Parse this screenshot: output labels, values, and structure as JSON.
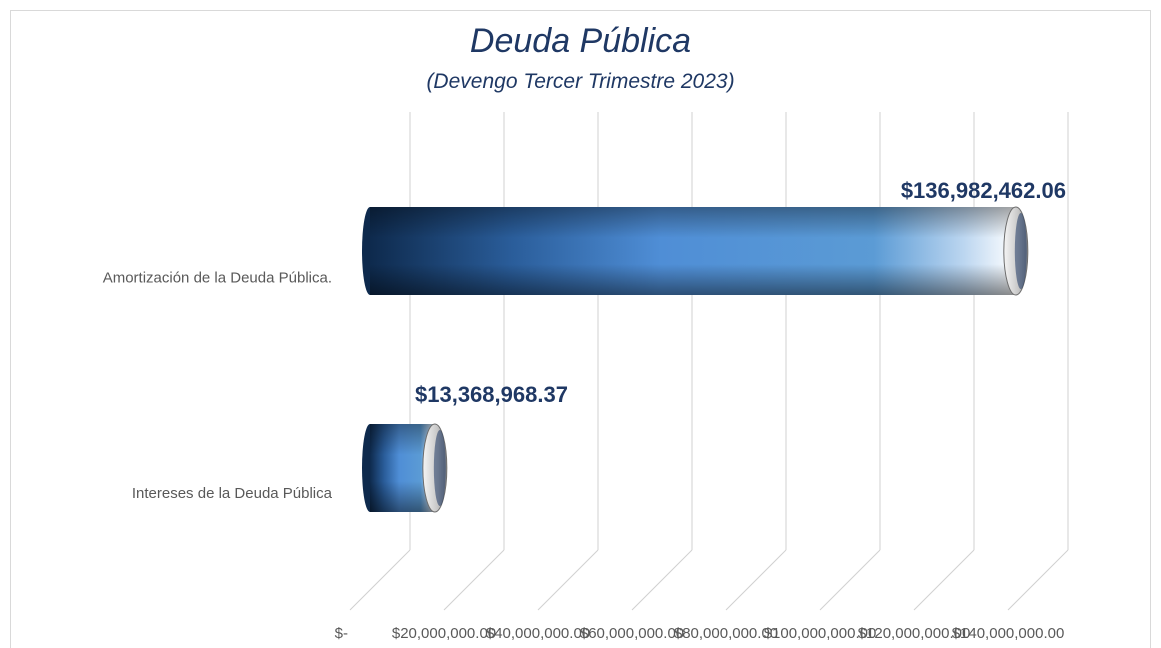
{
  "chart_data": {
    "type": "bar",
    "orientation": "horizontal",
    "style": "3d-cylinder",
    "title": "Deuda Pública",
    "subtitle": "(Devengo Tercer Trimestre  2023)",
    "categories": [
      "Amortización de la Deuda Pública.",
      "Intereses de la Deuda Pública"
    ],
    "values": [
      136982462.06,
      13368968.37
    ],
    "data_labels": [
      "$136,982,462.06",
      "$13,368,968.37"
    ],
    "xlim": [
      0,
      140000000
    ],
    "x_ticks": [
      0,
      20000000,
      40000000,
      60000000,
      80000000,
      100000000,
      120000000,
      140000000
    ],
    "x_tick_labels": [
      "$-",
      "$20,000,000.00",
      "$40,000,000.00",
      "$60,000,000.00",
      "$80,000,000.00",
      "$100,000,000.00",
      "$120,000,000.00",
      "$140,000,000.00"
    ],
    "grid": true,
    "legend": "none",
    "colors": {
      "bar_main": "#5b9bd5",
      "bar_dark": "#0e2a4d",
      "bar_light": "#ffffff",
      "label": "#1f3864",
      "grid": "#d0d0d0",
      "tick_text": "#595959"
    }
  }
}
